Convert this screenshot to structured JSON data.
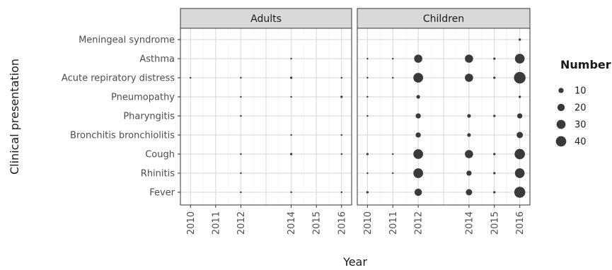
{
  "chart_data": {
    "type": "scatter",
    "xlabel": "Year",
    "ylabel": "Clinical presentation",
    "panels": [
      "Adults",
      "Children"
    ],
    "categories": [
      "Fever",
      "Rhinitis",
      "Cough",
      "Bronchitis bronchiolitis",
      "Pharyngitis",
      "Pneumopathy",
      "Acute repiratory distress",
      "Asthma",
      "Meningeal syndrome"
    ],
    "x_ticks": [
      2010,
      2011,
      2012,
      2014,
      2015,
      2016
    ],
    "size_legend": {
      "title": "Number",
      "values": [
        10,
        20,
        30,
        40
      ]
    },
    "grid": true,
    "legend_position": "right",
    "points": [
      {
        "panel": "Adults",
        "year": 2010,
        "category": "Acute repiratory distress",
        "number": 1
      },
      {
        "panel": "Adults",
        "year": 2012,
        "category": "Acute repiratory distress",
        "number": 1
      },
      {
        "panel": "Adults",
        "year": 2012,
        "category": "Pneumopathy",
        "number": 1
      },
      {
        "panel": "Adults",
        "year": 2012,
        "category": "Pharyngitis",
        "number": 1
      },
      {
        "panel": "Adults",
        "year": 2012,
        "category": "Cough",
        "number": 1
      },
      {
        "panel": "Adults",
        "year": 2012,
        "category": "Rhinitis",
        "number": 1
      },
      {
        "panel": "Adults",
        "year": 2012,
        "category": "Fever",
        "number": 1
      },
      {
        "panel": "Adults",
        "year": 2014,
        "category": "Asthma",
        "number": 1
      },
      {
        "panel": "Adults",
        "year": 2014,
        "category": "Acute repiratory distress",
        "number": 2
      },
      {
        "panel": "Adults",
        "year": 2014,
        "category": "Pneumopathy",
        "number": 1
      },
      {
        "panel": "Adults",
        "year": 2014,
        "category": "Bronchitis bronchiolitis",
        "number": 1
      },
      {
        "panel": "Adults",
        "year": 2014,
        "category": "Cough",
        "number": 2
      },
      {
        "panel": "Adults",
        "year": 2014,
        "category": "Fever",
        "number": 1
      },
      {
        "panel": "Adults",
        "year": 2016,
        "category": "Acute repiratory distress",
        "number": 1
      },
      {
        "panel": "Adults",
        "year": 2016,
        "category": "Pneumopathy",
        "number": 2
      },
      {
        "panel": "Adults",
        "year": 2016,
        "category": "Bronchitis bronchiolitis",
        "number": 1
      },
      {
        "panel": "Adults",
        "year": 2016,
        "category": "Cough",
        "number": 1
      },
      {
        "panel": "Adults",
        "year": 2016,
        "category": "Fever",
        "number": 1
      },
      {
        "panel": "Children",
        "year": 2010,
        "category": "Asthma",
        "number": 1
      },
      {
        "panel": "Children",
        "year": 2010,
        "category": "Acute repiratory distress",
        "number": 1
      },
      {
        "panel": "Children",
        "year": 2010,
        "category": "Pneumopathy",
        "number": 1
      },
      {
        "panel": "Children",
        "year": 2010,
        "category": "Pharyngitis",
        "number": 1
      },
      {
        "panel": "Children",
        "year": 2010,
        "category": "Cough",
        "number": 2
      },
      {
        "panel": "Children",
        "year": 2010,
        "category": "Rhinitis",
        "number": 1
      },
      {
        "panel": "Children",
        "year": 2010,
        "category": "Fever",
        "number": 2
      },
      {
        "panel": "Children",
        "year": 2011,
        "category": "Asthma",
        "number": 1
      },
      {
        "panel": "Children",
        "year": 2011,
        "category": "Acute repiratory distress",
        "number": 1
      },
      {
        "panel": "Children",
        "year": 2011,
        "category": "Cough",
        "number": 1
      },
      {
        "panel": "Children",
        "year": 2011,
        "category": "Rhinitis",
        "number": 1
      },
      {
        "panel": "Children",
        "year": 2012,
        "category": "Asthma",
        "number": 25
      },
      {
        "panel": "Children",
        "year": 2012,
        "category": "Acute repiratory distress",
        "number": 35
      },
      {
        "panel": "Children",
        "year": 2012,
        "category": "Pneumopathy",
        "number": 5
      },
      {
        "panel": "Children",
        "year": 2012,
        "category": "Pharyngitis",
        "number": 10
      },
      {
        "panel": "Children",
        "year": 2012,
        "category": "Bronchitis bronchiolitis",
        "number": 10
      },
      {
        "panel": "Children",
        "year": 2012,
        "category": "Cough",
        "number": 35
      },
      {
        "panel": "Children",
        "year": 2012,
        "category": "Rhinitis",
        "number": 35
      },
      {
        "panel": "Children",
        "year": 2012,
        "category": "Fever",
        "number": 20
      },
      {
        "panel": "Children",
        "year": 2014,
        "category": "Asthma",
        "number": 25
      },
      {
        "panel": "Children",
        "year": 2014,
        "category": "Acute repiratory distress",
        "number": 25
      },
      {
        "panel": "Children",
        "year": 2014,
        "category": "Pharyngitis",
        "number": 5
      },
      {
        "panel": "Children",
        "year": 2014,
        "category": "Bronchitis bronchiolitis",
        "number": 5
      },
      {
        "panel": "Children",
        "year": 2014,
        "category": "Cough",
        "number": 25
      },
      {
        "panel": "Children",
        "year": 2014,
        "category": "Rhinitis",
        "number": 10
      },
      {
        "panel": "Children",
        "year": 2014,
        "category": "Fever",
        "number": 15
      },
      {
        "panel": "Children",
        "year": 2015,
        "category": "Asthma",
        "number": 2
      },
      {
        "panel": "Children",
        "year": 2015,
        "category": "Acute repiratory distress",
        "number": 2
      },
      {
        "panel": "Children",
        "year": 2015,
        "category": "Pharyngitis",
        "number": 2
      },
      {
        "panel": "Children",
        "year": 2015,
        "category": "Cough",
        "number": 2
      },
      {
        "panel": "Children",
        "year": 2015,
        "category": "Rhinitis",
        "number": 2
      },
      {
        "panel": "Children",
        "year": 2015,
        "category": "Fever",
        "number": 2
      },
      {
        "panel": "Children",
        "year": 2016,
        "category": "Meningeal syndrome",
        "number": 2
      },
      {
        "panel": "Children",
        "year": 2016,
        "category": "Asthma",
        "number": 35
      },
      {
        "panel": "Children",
        "year": 2016,
        "category": "Acute repiratory distress",
        "number": 50
      },
      {
        "panel": "Children",
        "year": 2016,
        "category": "Pneumopathy",
        "number": 2
      },
      {
        "panel": "Children",
        "year": 2016,
        "category": "Pharyngitis",
        "number": 10
      },
      {
        "panel": "Children",
        "year": 2016,
        "category": "Bronchitis bronchiolitis",
        "number": 15
      },
      {
        "panel": "Children",
        "year": 2016,
        "category": "Cough",
        "number": 40
      },
      {
        "panel": "Children",
        "year": 2016,
        "category": "Rhinitis",
        "number": 35
      },
      {
        "panel": "Children",
        "year": 2016,
        "category": "Fever",
        "number": 45
      }
    ]
  }
}
